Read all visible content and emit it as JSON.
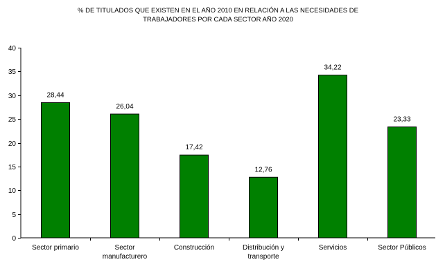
{
  "chart_data": {
    "type": "bar",
    "title_lines": [
      "% DE  TITULADOS QUE EXISTEN  EN EL AÑO 2010 EN RELACIÓN A LAS NECESIDADES DE",
      "TRABAJADORES POR CADA SECTOR AÑO 2020"
    ],
    "categories": [
      [
        "Sector primario"
      ],
      [
        "Sector",
        "manufacturero"
      ],
      [
        "Construcción"
      ],
      [
        "Distribución y",
        "transporte"
      ],
      [
        "Servicios"
      ],
      [
        "Sector Públicos"
      ]
    ],
    "values": [
      28.44,
      26.04,
      17.42,
      12.76,
      34.22,
      23.33
    ],
    "value_labels": [
      "28,44",
      "26,04",
      "17,42",
      "12,76",
      "34,22",
      "23,33"
    ],
    "ylim": [
      0,
      40
    ],
    "yticks": [
      0,
      5,
      10,
      15,
      20,
      25,
      30,
      35,
      40
    ],
    "bar_color": "#008000",
    "bar_edge_color": "#000000",
    "grid": false,
    "legend": false
  }
}
